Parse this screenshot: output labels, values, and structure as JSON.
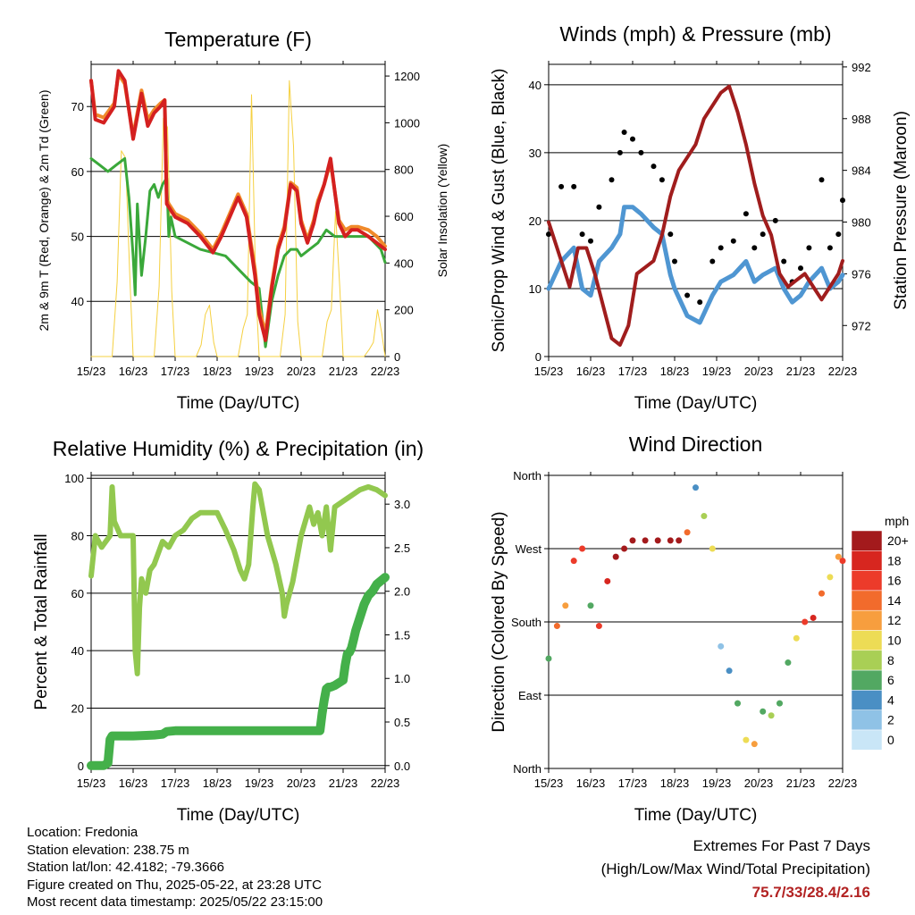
{
  "chart_data": [
    {
      "type": "line",
      "title": "Temperature (F)",
      "xlabel": "Time (Day/UTC)",
      "ylabel": "2m & 9m T (Red, Orange) & 2m Td (Green)",
      "ylabel_right": "Solar Insolation (Yellow)",
      "xticks": [
        "15/23",
        "16/23",
        "17/23",
        "18/23",
        "19/23",
        "20/23",
        "21/23",
        "22/23"
      ],
      "xlim": [
        0,
        7
      ],
      "ylim": [
        31.5,
        76.5
      ],
      "yticks": [
        40,
        50,
        60,
        70
      ],
      "ylim_right": [
        0,
        1250
      ],
      "yticks_right": [
        0,
        200,
        400,
        600,
        800,
        1000,
        1200
      ],
      "grid": true,
      "series": [
        {
          "name": "2m T",
          "color": "#d42020",
          "x": [
            0,
            0.1,
            0.3,
            0.55,
            0.65,
            0.8,
            1,
            1.2,
            1.35,
            1.5,
            1.65,
            1.75,
            1.8,
            2,
            2.3,
            2.6,
            2.9,
            3.1,
            3.3,
            3.5,
            3.7,
            3.9,
            4,
            4.15,
            4.3,
            4.45,
            4.6,
            4.75,
            4.9,
            5,
            5.15,
            5.3,
            5.4,
            5.55,
            5.7,
            5.9,
            6.05,
            6.2,
            6.35,
            6.6,
            6.8,
            7
          ],
          "values": [
            74,
            68,
            67.5,
            70,
            75.5,
            74,
            65,
            72,
            67,
            69,
            70,
            71,
            55,
            53,
            52,
            50,
            47.5,
            50,
            53,
            56,
            53,
            44,
            38,
            34,
            42,
            48,
            51,
            58,
            57,
            52,
            49,
            52,
            55,
            58,
            62,
            52,
            50,
            51,
            51,
            50,
            49,
            48
          ]
        },
        {
          "name": "9m T",
          "color": "#f08a2a",
          "x": [
            0,
            0.1,
            0.3,
            0.55,
            0.65,
            0.8,
            1,
            1.2,
            1.35,
            1.5,
            1.65,
            1.75,
            1.8,
            2,
            2.3,
            2.6,
            2.9,
            3.1,
            3.3,
            3.5,
            3.7,
            3.9,
            4,
            4.15,
            4.3,
            4.45,
            4.6,
            4.75,
            4.9,
            5,
            5.15,
            5.3,
            5.4,
            5.55,
            5.7,
            5.9,
            6.05,
            6.2,
            6.35,
            6.6,
            6.8,
            7
          ],
          "values": [
            74,
            68.8,
            68.3,
            70.5,
            75,
            73.5,
            65.5,
            72.5,
            68,
            69.5,
            70.5,
            71,
            55.5,
            53.5,
            52.5,
            50.5,
            48,
            50.5,
            53.5,
            56.5,
            53.5,
            45,
            39,
            35,
            42.5,
            48.5,
            51.5,
            58.3,
            57.5,
            52.5,
            49.5,
            52.5,
            55.5,
            58,
            61.5,
            52.5,
            51,
            51.5,
            51.5,
            51,
            50,
            48.5
          ]
        },
        {
          "name": "2m Td",
          "color": "#3aa83a",
          "x": [
            0,
            0.2,
            0.4,
            0.6,
            0.8,
            0.9,
            1,
            1.05,
            1.1,
            1.2,
            1.3,
            1.4,
            1.5,
            1.6,
            1.7,
            1.8,
            1.85,
            1.9,
            2,
            2.3,
            2.6,
            2.9,
            3.2,
            3.5,
            3.8,
            4,
            4.15,
            4.3,
            4.45,
            4.6,
            4.75,
            4.9,
            5,
            5.2,
            5.4,
            5.6,
            5.8,
            6,
            6.3,
            6.6,
            6.9,
            7
          ],
          "values": [
            62,
            61,
            60,
            61,
            62,
            56,
            47,
            41,
            55,
            44,
            50,
            57,
            58,
            56,
            58,
            59,
            50,
            53,
            50,
            49,
            48,
            47.5,
            47,
            45,
            43,
            42,
            33,
            40,
            44,
            47,
            48,
            48,
            47,
            48,
            49,
            51,
            50,
            50,
            50,
            50,
            48,
            46
          ]
        },
        {
          "name": "Solar Insolation",
          "color": "#f5d040",
          "axis": "right",
          "x": [
            0,
            0.5,
            0.62,
            0.72,
            0.82,
            0.92,
            1,
            1.5,
            1.62,
            1.72,
            1.82,
            1.92,
            2,
            2.5,
            2.62,
            2.72,
            2.82,
            2.92,
            3,
            3.5,
            3.62,
            3.72,
            3.82,
            3.92,
            4,
            4.5,
            4.62,
            4.72,
            4.82,
            4.92,
            5,
            5.5,
            5.62,
            5.72,
            5.82,
            5.92,
            6,
            6.5,
            6.62,
            6.72,
            6.82,
            6.92,
            7
          ],
          "values": [
            0,
            0,
            320,
            880,
            850,
            350,
            0,
            0,
            300,
            1020,
            980,
            280,
            0,
            0,
            50,
            180,
            220,
            60,
            0,
            0,
            120,
            180,
            1120,
            300,
            0,
            0,
            180,
            1180,
            900,
            150,
            0,
            0,
            150,
            200,
            620,
            300,
            0,
            0,
            30,
            60,
            200,
            100,
            0
          ]
        }
      ]
    },
    {
      "type": "line",
      "title": "Winds (mph) & Pressure (mb)",
      "xlabel": "Time (Day/UTC)",
      "ylabel": "Sonic/Prop Wind & Gust (Blue, Black)",
      "ylabel_right": "Station Pressure (Maroon)",
      "xticks": [
        "15/23",
        "16/23",
        "17/23",
        "18/23",
        "19/23",
        "20/23",
        "21/23",
        "22/23"
      ],
      "xlim": [
        0,
        7
      ],
      "ylim": [
        0,
        43
      ],
      "yticks": [
        0,
        10,
        20,
        30,
        40
      ],
      "ylim_right": [
        969.6,
        992.2
      ],
      "yticks_right": [
        972,
        976,
        980,
        984,
        988,
        992
      ],
      "grid": true,
      "series": [
        {
          "name": "Sonic/Prop Wind",
          "color": "#4f96d2",
          "x": [
            0,
            0.3,
            0.6,
            0.8,
            1,
            1.2,
            1.5,
            1.7,
            1.8,
            2,
            2.2,
            2.5,
            2.7,
            2.9,
            3,
            3.3,
            3.6,
            3.9,
            4.1,
            4.4,
            4.7,
            4.9,
            5.1,
            5.4,
            5.6,
            5.8,
            6,
            6.2,
            6.5,
            6.7,
            6.9,
            7
          ],
          "values": [
            10,
            14,
            16,
            10,
            9,
            14,
            16,
            18,
            22,
            22,
            21,
            19,
            18,
            12,
            10,
            6,
            5,
            9,
            11,
            12,
            14,
            11,
            12,
            13,
            10,
            8,
            9,
            11,
            13,
            10,
            11,
            12
          ]
        },
        {
          "name": "Gust",
          "color": "#000000",
          "x": [
            0,
            0.3,
            0.6,
            0.8,
            1,
            1.2,
            1.5,
            1.7,
            1.8,
            2,
            2.2,
            2.5,
            2.7,
            2.9,
            3,
            3.3,
            3.6,
            3.9,
            4.1,
            4.4,
            4.7,
            4.9,
            5.1,
            5.4,
            5.6,
            5.8,
            6,
            6.2,
            6.5,
            6.7,
            6.9,
            7
          ],
          "values": [
            18,
            25,
            25,
            18,
            17,
            22,
            26,
            30,
            33,
            32,
            30,
            28,
            26,
            18,
            14,
            9,
            8,
            14,
            16,
            17,
            21,
            16,
            18,
            20,
            14,
            11,
            13,
            16,
            26,
            16,
            18,
            23
          ]
        },
        {
          "name": "Station Pressure",
          "color": "#a01d1d",
          "axis": "right",
          "x": [
            0,
            0.3,
            0.5,
            0.7,
            0.9,
            1.1,
            1.3,
            1.5,
            1.7,
            1.9,
            2.1,
            2.3,
            2.5,
            2.7,
            2.9,
            3.1,
            3.3,
            3.5,
            3.7,
            3.9,
            4.1,
            4.3,
            4.5,
            4.7,
            4.9,
            5.1,
            5.3,
            5.5,
            5.7,
            5.9,
            6.1,
            6.3,
            6.5,
            6.7,
            6.9,
            7
          ],
          "values": [
            980,
            977,
            975,
            978,
            978,
            976,
            973.5,
            971,
            970.5,
            972,
            976,
            976.5,
            977,
            979,
            982,
            984,
            985,
            986,
            988,
            989,
            990,
            990.5,
            988.5,
            986,
            983,
            980.5,
            979,
            976,
            975,
            975.5,
            976,
            975,
            974,
            975,
            976,
            977
          ]
        }
      ]
    },
    {
      "type": "line",
      "title": "Relative Humidity (%) & Precipitation (in)",
      "xlabel": "Time (Day/UTC)",
      "ylabel": "Percent & Total Rainfall",
      "xticks": [
        "15/23",
        "16/23",
        "17/23",
        "18/23",
        "19/23",
        "20/23",
        "21/23",
        "22/23"
      ],
      "xlim": [
        0,
        7
      ],
      "ylim": [
        -1,
        101
      ],
      "yticks": [
        0,
        20,
        40,
        60,
        80,
        100
      ],
      "ylim_right": [
        -0.033,
        3.33
      ],
      "yticks_right": [
        "0.0",
        "0.5",
        "1.0",
        "1.5",
        "2.0",
        "2.5",
        "3.0"
      ],
      "grid": true,
      "series": [
        {
          "name": "Relative Humidity",
          "color": "#92c84f",
          "x": [
            0,
            0.1,
            0.25,
            0.45,
            0.5,
            0.55,
            0.7,
            0.85,
            1,
            1.05,
            1.1,
            1.15,
            1.2,
            1.3,
            1.4,
            1.5,
            1.7,
            1.85,
            2,
            2.2,
            2.4,
            2.6,
            2.8,
            3,
            3.2,
            3.4,
            3.55,
            3.65,
            3.75,
            3.85,
            3.9,
            4,
            4.2,
            4.4,
            4.55,
            4.6,
            4.65,
            4.8,
            5,
            5.2,
            5.3,
            5.4,
            5.5,
            5.6,
            5.7,
            5.8,
            6,
            6.2,
            6.4,
            6.6,
            6.8,
            7
          ],
          "values": [
            66,
            80,
            76,
            80,
            97,
            85,
            80,
            80,
            80,
            40,
            32,
            55,
            65,
            60,
            68,
            70,
            78,
            76,
            80,
            82,
            86,
            88,
            88,
            88,
            82,
            75,
            68,
            65,
            70,
            90,
            98,
            96,
            80,
            70,
            60,
            52,
            56,
            64,
            80,
            90,
            84,
            88,
            80,
            90,
            75,
            90,
            92,
            94,
            96,
            97,
            96,
            94
          ]
        },
        {
          "name": "Total Rainfall",
          "color": "#44b04a",
          "axis": "right",
          "x": [
            0,
            0.3,
            0.4,
            0.45,
            0.5,
            0.6,
            1,
            1.5,
            1.7,
            1.8,
            2,
            3,
            4,
            5,
            5.45,
            5.5,
            5.55,
            5.6,
            5.65,
            5.7,
            5.8,
            6,
            6.05,
            6.1,
            6.15,
            6.2,
            6.25,
            6.3,
            6.4,
            6.5,
            6.6,
            6.7,
            6.8,
            6.9,
            7
          ],
          "values": [
            0,
            0,
            0.03,
            0.3,
            0.34,
            0.34,
            0.34,
            0.35,
            0.36,
            0.39,
            0.4,
            0.4,
            0.4,
            0.4,
            0.4,
            0.6,
            0.75,
            0.88,
            0.9,
            0.9,
            0.92,
            0.98,
            1.15,
            1.28,
            1.3,
            1.35,
            1.45,
            1.55,
            1.7,
            1.85,
            1.95,
            2.0,
            2.08,
            2.12,
            2.16
          ]
        }
      ]
    },
    {
      "type": "scatter",
      "title": "Wind Direction",
      "xlabel": "Time (Day/UTC)",
      "ylabel": "Direction (Colored By Speed)",
      "xticks": [
        "15/23",
        "16/23",
        "17/23",
        "18/23",
        "19/23",
        "20/23",
        "21/23",
        "22/23"
      ],
      "xlim": [
        0,
        7
      ],
      "ylim": [
        0,
        360
      ],
      "yticks": [
        {
          "value": 0,
          "label": "North"
        },
        {
          "value": 90,
          "label": "East"
        },
        {
          "value": 180,
          "label": "South"
        },
        {
          "value": 270,
          "label": "West"
        },
        {
          "value": 360,
          "label": "North"
        }
      ],
      "grid": true,
      "legend": {
        "title": "mph",
        "labels": [
          "20+",
          "18",
          "16",
          "14",
          "12",
          "10",
          "8",
          "6",
          "4",
          "2",
          "0"
        ],
        "colors": [
          "#a31a1c",
          "#d7261f",
          "#ec3b2a",
          "#f26b2c",
          "#f79e3e",
          "#eddc55",
          "#a9cf55",
          "#52a862",
          "#4a8fc4",
          "#8fc2e6",
          "#c9e6f7"
        ],
        "placement": "right"
      },
      "x": [
        0,
        0.2,
        0.4,
        0.6,
        0.8,
        1,
        1.2,
        1.4,
        1.6,
        1.8,
        2,
        2.3,
        2.6,
        2.9,
        3.1,
        3.3,
        3.5,
        3.7,
        3.9,
        4.1,
        4.3,
        4.5,
        4.7,
        4.9,
        5.1,
        5.3,
        5.5,
        5.7,
        5.9,
        6.1,
        6.3,
        6.5,
        6.7,
        6.9,
        7
      ],
      "values": [
        135,
        175,
        200,
        255,
        270,
        200,
        175,
        230,
        260,
        270,
        280,
        280,
        280,
        280,
        280,
        290,
        345,
        310,
        270,
        150,
        120,
        80,
        35,
        30,
        70,
        65,
        80,
        130,
        160,
        180,
        185,
        215,
        235,
        260,
        255
      ],
      "speeds": [
        6,
        14,
        12,
        16,
        16,
        6,
        16,
        18,
        20,
        20,
        20,
        20,
        20,
        20,
        20,
        14,
        4,
        8,
        10,
        2,
        4,
        6,
        10,
        12,
        6,
        8,
        6,
        6,
        10,
        16,
        18,
        14,
        10,
        12,
        16
      ]
    }
  ],
  "info": {
    "location": "Location: Fredonia",
    "elevation": "Station elevation: 238.75 m",
    "latlon": "Station lat/lon: 42.4182; -79.3666",
    "created": "Figure created on Thu, 2025-05-22, at 23:28 UTC",
    "recent": "Most recent data timestamp: 2025/05/22 23:15:00"
  },
  "extremes": {
    "title": "Extremes For Past 7 Days",
    "subtitle": "(High/Low/Max Wind/Total Precipitation)",
    "values": "75.7/33/28.4/2.16",
    "values_color": "#b22222"
  }
}
